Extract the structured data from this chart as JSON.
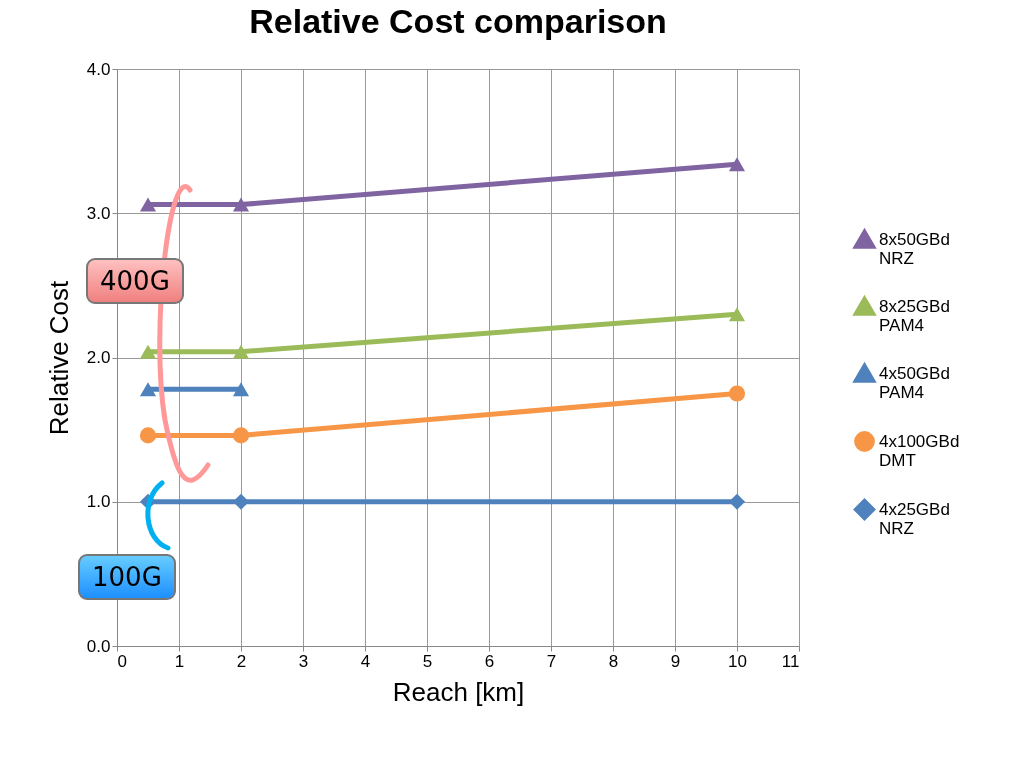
{
  "chart_data": {
    "type": "line",
    "title": "Relative Cost comparison",
    "xlabel": "Reach [km]",
    "ylabel": "Relative Cost",
    "x": [
      0.5,
      2,
      10
    ],
    "series": [
      {
        "name": "8x50GBd NRZ",
        "color": "#8064a2",
        "marker": "triangle",
        "values": [
          3.06,
          3.06,
          3.34
        ]
      },
      {
        "name": "8x25GBd PAM4",
        "color": "#9bbb59",
        "marker": "triangle",
        "values": [
          2.04,
          2.04,
          2.3
        ]
      },
      {
        "name": "4x50GBd PAM4",
        "color": "#4f81bd",
        "marker": "triangle",
        "values": [
          1.78,
          1.78,
          null
        ]
      },
      {
        "name": "4x100GBd DMT",
        "color": "#f79646",
        "marker": "circle",
        "values": [
          1.46,
          1.46,
          1.75
        ]
      },
      {
        "name": "4x25GBd NRZ",
        "color": "#4f81bd",
        "marker": "diamond",
        "values": [
          1,
          1,
          1
        ]
      }
    ],
    "xlim": [
      0,
      11
    ],
    "xticks": [
      0,
      1,
      2,
      3,
      4,
      5,
      6,
      7,
      8,
      9,
      10,
      11
    ],
    "ylim": [
      0,
      4
    ],
    "yticks": [
      {
        "value": 0,
        "label": "0.0"
      },
      {
        "value": 1,
        "label": "1.0"
      },
      {
        "value": 2,
        "label": "2.0"
      },
      {
        "value": 3,
        "label": "3.0"
      },
      {
        "value": 4,
        "label": "4.0"
      }
    ],
    "grid": true,
    "legend": "right",
    "line_style": "solid",
    "annotations": [
      "400G",
      "100G"
    ]
  }
}
